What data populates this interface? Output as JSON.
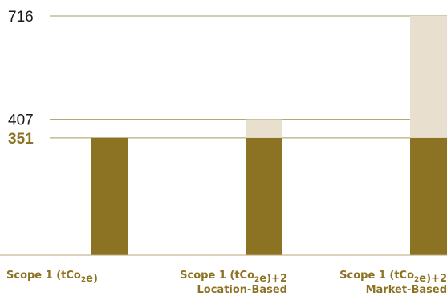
{
  "chart_data": {
    "type": "bar",
    "stacked": true,
    "categories": [
      [
        "Scope 1 (tCo₂e)"
      ],
      [
        "Scope 1 (tCo₂e)+2",
        "Location-Based"
      ],
      [
        "Scope 1 (tCo₂e)+2",
        "Market-Based"
      ]
    ],
    "series": [
      {
        "values": [
          351,
          351,
          351
        ]
      },
      {
        "values": [
          0,
          56,
          365
        ]
      }
    ],
    "yticks": [
      716,
      407,
      351
    ],
    "highlight_tick": 351,
    "ylim": [
      0,
      716
    ],
    "grid": true,
    "legend": "none",
    "colors": {
      "base": "#8c7323",
      "overlay": "#e8dfcf",
      "grid": "#a89b5a",
      "axis": "#b8a77a",
      "tick_text": "#1a1a1a",
      "highlight_text": "#8c7323"
    }
  }
}
